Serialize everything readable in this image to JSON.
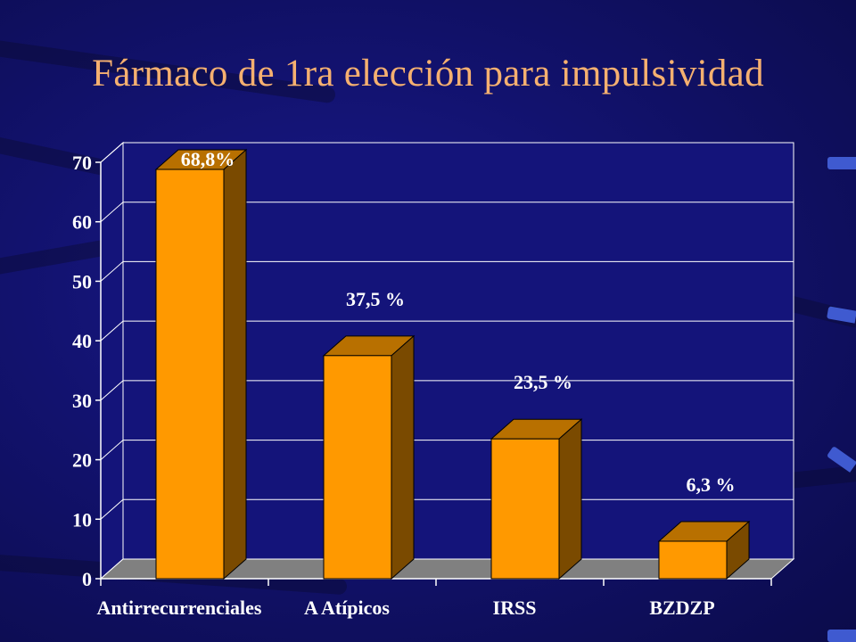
{
  "title": "Fármaco de 1ra elección para impulsividad",
  "colors": {
    "title": "#f5b070",
    "bar_front": "#ff9900",
    "bar_top": "#b87000",
    "bar_side": "#7a4a00",
    "floor": "#808080",
    "plot_bg": "#14147a",
    "axis_text": "#ffffff"
  },
  "chart_data": {
    "type": "bar",
    "categories": [
      "Antirrecurrenciales",
      "A Atípicos",
      "IRSS",
      "BZDZP"
    ],
    "values": [
      68.8,
      37.5,
      23.5,
      6.3
    ],
    "data_labels": [
      "68,8%",
      "37,5 %",
      "23,5 %",
      "6,3 %"
    ],
    "y_ticks": [
      "0",
      "10",
      "20",
      "30",
      "40",
      "50",
      "60",
      "70"
    ],
    "ylim": [
      0,
      70
    ],
    "grid": true,
    "style": "3d"
  }
}
